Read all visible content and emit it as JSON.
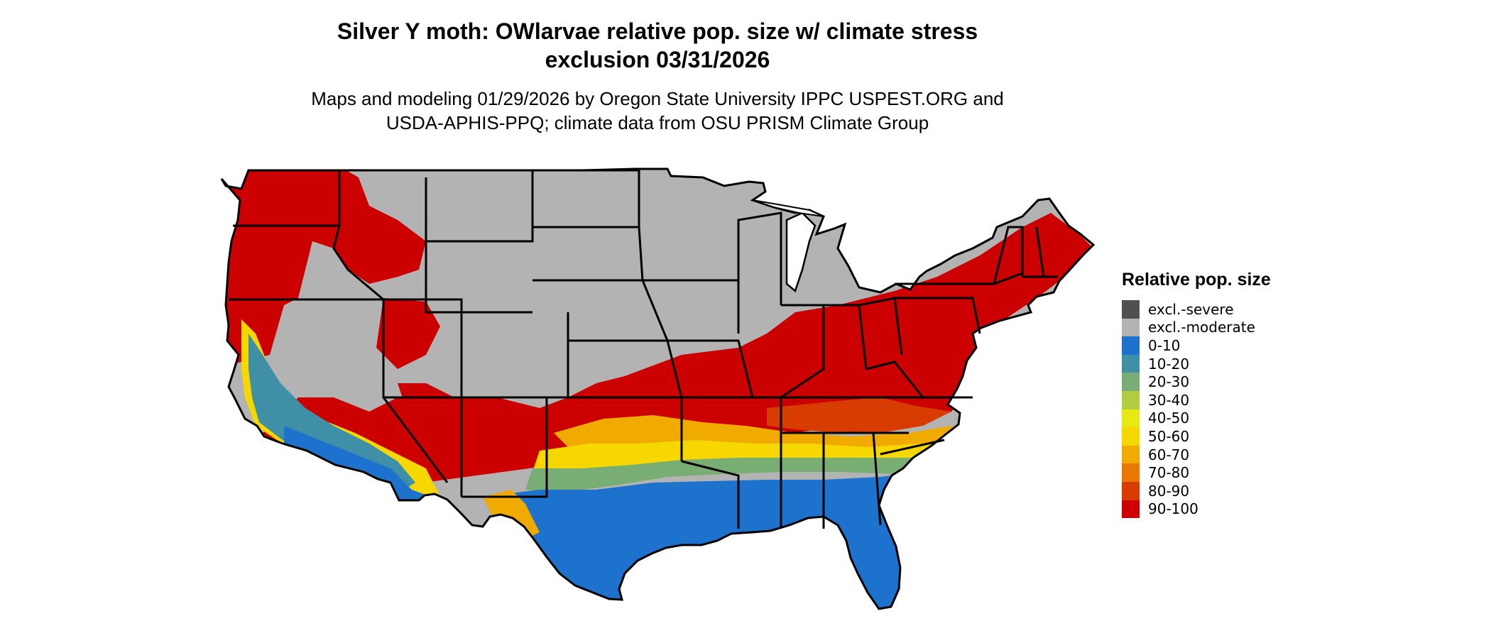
{
  "map": {
    "title_line1": "Silver Y moth: OWlarvae relative pop. size w/ climate stress",
    "title_line2": "exclusion 03/31/2026",
    "subtitle_line1": "Maps and modeling 01/29/2026 by Oregon State University IPPC USPEST.ORG and",
    "subtitle_line2": "USDA-APHIS-PPQ; climate data from OSU PRISM Climate Group",
    "region": "Contiguous United States"
  },
  "legend": {
    "title": "Relative pop. size",
    "items": [
      {
        "label": "excl.-severe",
        "color": "#505050"
      },
      {
        "label": "excl.-moderate",
        "color": "#b3b3b3"
      },
      {
        "label": "0-10",
        "color": "#1c72cc"
      },
      {
        "label": "10-20",
        "color": "#3f90a6"
      },
      {
        "label": "20-30",
        "color": "#78ad73"
      },
      {
        "label": "30-40",
        "color": "#b1ce42"
      },
      {
        "label": "40-50",
        "color": "#e6ea12"
      },
      {
        "label": "50-60",
        "color": "#f6d800"
      },
      {
        "label": "60-70",
        "color": "#f0aa00"
      },
      {
        "label": "70-80",
        "color": "#ea7800"
      },
      {
        "label": "80-90",
        "color": "#d83c00"
      },
      {
        "label": "90-100",
        "color": "#cc0000"
      }
    ]
  }
}
